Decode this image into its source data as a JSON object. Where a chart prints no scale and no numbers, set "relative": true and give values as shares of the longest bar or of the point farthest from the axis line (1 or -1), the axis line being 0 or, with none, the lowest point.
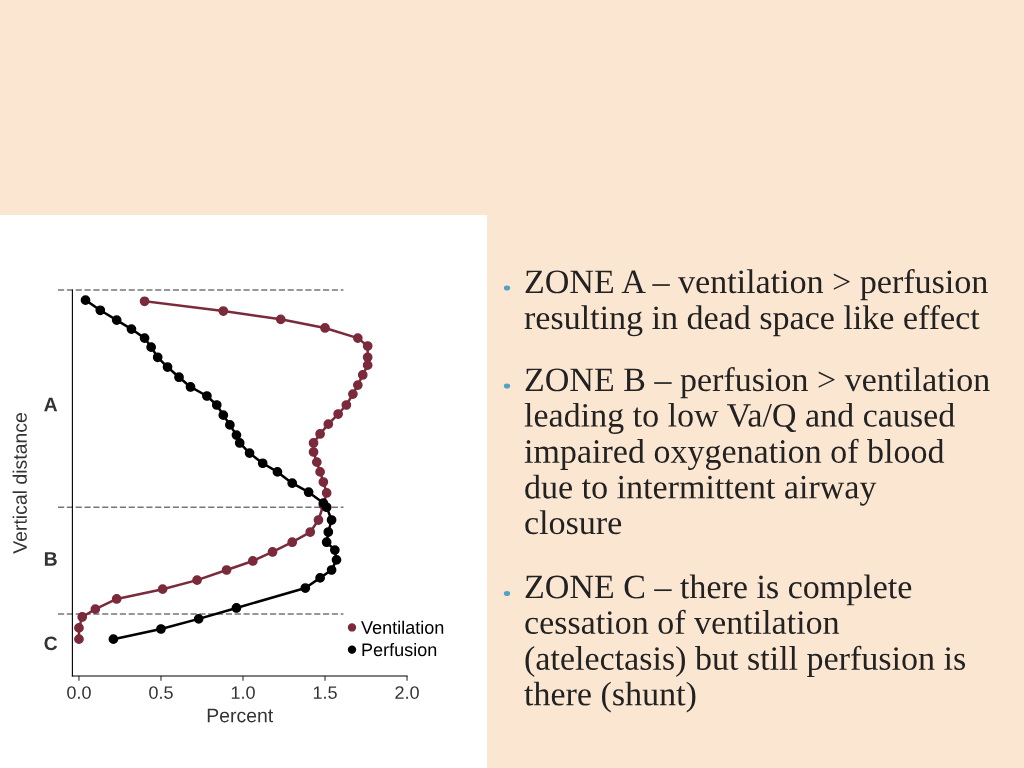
{
  "chart_data": {
    "type": "line",
    "xlabel": "Percent",
    "ylabel": "Vertical distance",
    "relative": true,
    "xlim": [
      -0.04,
      2.0
    ],
    "xticks": [
      {
        "value": 0,
        "label": "0.0"
      },
      {
        "value": 0.5,
        "label": "0.5"
      },
      {
        "value": 1,
        "label": "1.0"
      },
      {
        "value": 1.5,
        "label": "1.5"
      },
      {
        "value": 2,
        "label": "2.0"
      }
    ],
    "tick_labels": "x",
    "marker": "circle",
    "line_style": "solid",
    "legend": "bottom right",
    "grid": false,
    "series": [
      {
        "name": "Ventilation",
        "color": "#7a2a3a",
        "x": [
          0.4,
          0.88,
          1.23,
          1.5,
          1.7,
          1.76,
          1.76,
          1.76,
          1.73,
          1.7,
          1.67,
          1.63,
          1.58,
          1.52,
          1.47,
          1.43,
          1.43,
          1.45,
          1.47,
          1.49,
          1.51,
          1.49,
          1.46,
          1.41,
          1.3,
          1.18,
          1.06,
          0.9,
          0.72,
          0.51,
          0.23,
          0.1,
          0.02,
          0.0,
          0.0
        ],
        "values": [
          0.997,
          0.971,
          0.949,
          0.926,
          0.899,
          0.878,
          0.848,
          0.827,
          0.801,
          0.774,
          0.75,
          0.721,
          0.697,
          0.67,
          0.644,
          0.62,
          0.596,
          0.569,
          0.543,
          0.516,
          0.487,
          0.455,
          0.415,
          0.383,
          0.356,
          0.33,
          0.306,
          0.282,
          0.255,
          0.231,
          0.205,
          0.178,
          0.157,
          0.128,
          0.098
        ]
      },
      {
        "name": "Perfusion",
        "color": "#000000",
        "x": [
          0.04,
          0.13,
          0.23,
          0.32,
          0.4,
          0.44,
          0.48,
          0.54,
          0.61,
          0.68,
          0.78,
          0.84,
          0.88,
          0.92,
          0.96,
          0.98,
          1.04,
          1.12,
          1.21,
          1.3,
          1.4,
          1.49,
          1.51,
          1.54,
          1.52,
          1.51,
          1.56,
          1.57,
          1.54,
          1.47,
          1.38,
          0.96,
          0.73,
          0.5,
          0.21
        ],
        "values": [
          1.0,
          0.973,
          0.947,
          0.923,
          0.899,
          0.875,
          0.848,
          0.822,
          0.795,
          0.769,
          0.745,
          0.721,
          0.694,
          0.668,
          0.641,
          0.62,
          0.593,
          0.566,
          0.543,
          0.513,
          0.489,
          0.46,
          0.449,
          0.415,
          0.383,
          0.356,
          0.335,
          0.309,
          0.282,
          0.261,
          0.234,
          0.181,
          0.152,
          0.125,
          0.098
        ]
      }
    ],
    "ref_lines": [
      {
        "axis": "y",
        "value": 1.027,
        "color": "#777777",
        "line_style": "dashed"
      },
      {
        "axis": "y",
        "value": 0.449,
        "color": "#777777",
        "line_style": "dashed"
      },
      {
        "axis": "y",
        "value": 0.165,
        "color": "#777777",
        "line_style": "dashed"
      }
    ],
    "annotations": [
      "A",
      "B",
      "C",
      "ZONE A – ventilation > perfusion\nresulting in dead space like effect",
      "ZONE B – perfusion > ventilation\nleading to low Va/Q and caused\nimpaired oxygenation of blood\ndue to intermittent airway\nclosure",
      "ZONE C – there is complete\ncessation of ventilation\n(atelectasis) but still perfusion is\nthere (shunt)"
    ]
  }
}
